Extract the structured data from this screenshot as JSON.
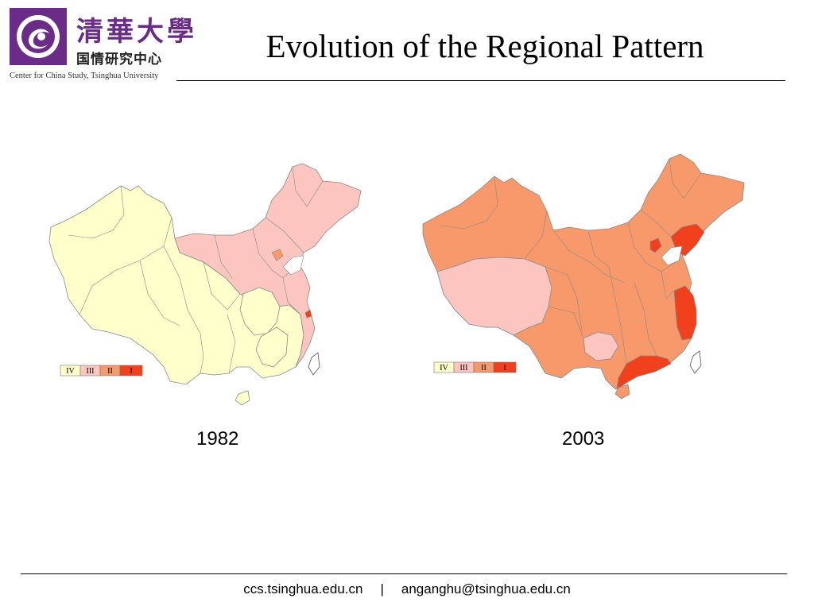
{
  "header": {
    "logo_cn_big": "清華大學",
    "logo_cn_small": "国情研究中心",
    "logo_en": "Center for China Study, Tsinghua University",
    "title": "Evolution of the Regional Pattern"
  },
  "legend": {
    "items": [
      {
        "label": "IV",
        "color": "#ffffcc"
      },
      {
        "label": "III",
        "color": "#fcc5c0"
      },
      {
        "label": "II",
        "color": "#f7996b"
      },
      {
        "label": "I",
        "color": "#f0401c"
      }
    ]
  },
  "maps": [
    {
      "year": "1982"
    },
    {
      "year": "2003"
    }
  ],
  "footer": {
    "site": "ccs.tsinghua.edu.cn",
    "separator": "|",
    "email": "anganghu@tsinghua.edu.cn"
  },
  "colors": {
    "brand_purple": "#6b2c87",
    "border": "#8a8a8a"
  }
}
